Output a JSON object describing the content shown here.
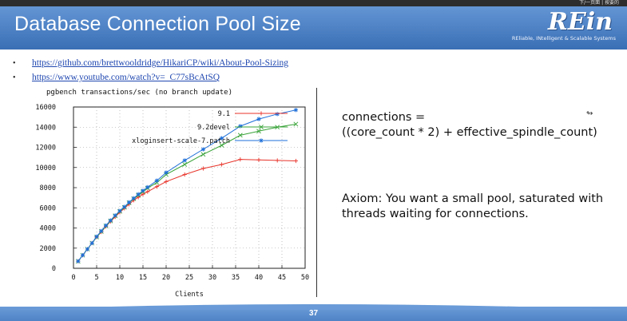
{
  "header": {
    "title": "Database Connection Pool Size",
    "top_strip_text": "下/一页面 | 按要的",
    "logo": {
      "mark": "REin",
      "tagline": "REliable, INtelligent & Scalable Systems"
    }
  },
  "links": [
    {
      "text": "https://github.com/brettwooldridge/HikariCP/wiki/About-Pool-Sizing"
    },
    {
      "text": "https://www.youtube.com/watch?v=_C77sBcAtSQ"
    }
  ],
  "right": {
    "formula_line1": "connections =",
    "formula_line2": "((core_count * 2) + effective_spindle_count)",
    "axiom": "Axiom: You want a small pool, saturated with threads waiting for connections."
  },
  "footer": {
    "page_number": "37"
  },
  "colors": {
    "header": "#4f83c6",
    "link": "#1f47b0",
    "series_red": "#e8332a",
    "series_green": "#3aa33a",
    "series_blue": "#1e6fd9"
  },
  "chart_data": {
    "type": "line",
    "title": "pgbench transactions/sec (no branch update)",
    "xlabel": "Clients",
    "ylabel": "",
    "xlim": [
      0,
      50
    ],
    "ylim": [
      0,
      16000
    ],
    "xticks": [
      0,
      5,
      10,
      15,
      20,
      25,
      30,
      35,
      40,
      45,
      50
    ],
    "yticks": [
      0,
      2000,
      4000,
      6000,
      8000,
      10000,
      12000,
      14000,
      16000
    ],
    "grid": true,
    "legend": "top-right",
    "series": [
      {
        "name": "9.1",
        "color": "#e8332a",
        "marker": "+",
        "points": [
          [
            1,
            700
          ],
          [
            2,
            1300
          ],
          [
            3,
            1900
          ],
          [
            4,
            2500
          ],
          [
            5,
            3100
          ],
          [
            6,
            3600
          ],
          [
            7,
            4150
          ],
          [
            8,
            4650
          ],
          [
            9,
            5100
          ],
          [
            10,
            5550
          ],
          [
            11,
            5950
          ],
          [
            12,
            6350
          ],
          [
            13,
            6750
          ],
          [
            14,
            7050
          ],
          [
            15,
            7350
          ],
          [
            16,
            7600
          ],
          [
            18,
            8100
          ],
          [
            20,
            8600
          ],
          [
            24,
            9300
          ],
          [
            28,
            9900
          ],
          [
            32,
            10300
          ],
          [
            36,
            10800
          ],
          [
            40,
            10750
          ],
          [
            44,
            10700
          ],
          [
            48,
            10650
          ]
        ]
      },
      {
        "name": "9.2devel",
        "color": "#3aa33a",
        "marker": "x",
        "points": [
          [
            1,
            700
          ],
          [
            2,
            1300
          ],
          [
            3,
            1900
          ],
          [
            4,
            2500
          ],
          [
            5,
            3100
          ],
          [
            6,
            3650
          ],
          [
            7,
            4200
          ],
          [
            8,
            4700
          ],
          [
            9,
            5200
          ],
          [
            10,
            5650
          ],
          [
            11,
            6050
          ],
          [
            12,
            6500
          ],
          [
            13,
            6900
          ],
          [
            14,
            7250
          ],
          [
            15,
            7600
          ],
          [
            16,
            7950
          ],
          [
            18,
            8500
          ],
          [
            20,
            9300
          ],
          [
            24,
            10300
          ],
          [
            28,
            11300
          ],
          [
            32,
            12200
          ],
          [
            36,
            13200
          ],
          [
            40,
            13600
          ],
          [
            44,
            14000
          ],
          [
            48,
            14300
          ]
        ]
      },
      {
        "name": "xloginsert-scale-7.patch",
        "color": "#1e6fd9",
        "marker": "*",
        "points": [
          [
            1,
            700
          ],
          [
            2,
            1300
          ],
          [
            3,
            1900
          ],
          [
            4,
            2500
          ],
          [
            5,
            3150
          ],
          [
            6,
            3700
          ],
          [
            7,
            4250
          ],
          [
            8,
            4750
          ],
          [
            9,
            5250
          ],
          [
            10,
            5700
          ],
          [
            11,
            6100
          ],
          [
            12,
            6550
          ],
          [
            13,
            6950
          ],
          [
            14,
            7350
          ],
          [
            15,
            7700
          ],
          [
            16,
            8050
          ],
          [
            18,
            8700
          ],
          [
            20,
            9500
          ],
          [
            24,
            10700
          ],
          [
            28,
            11800
          ],
          [
            32,
            12900
          ],
          [
            36,
            14100
          ],
          [
            40,
            14800
          ],
          [
            44,
            15300
          ],
          [
            48,
            15700
          ]
        ]
      }
    ]
  }
}
